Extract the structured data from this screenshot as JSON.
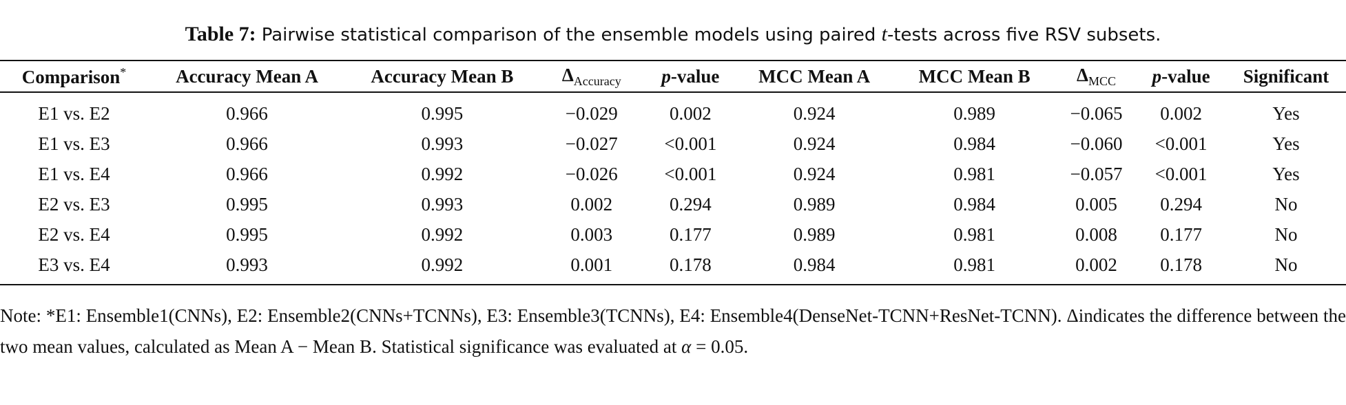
{
  "caption": {
    "label": "Table 7:",
    "text_before": "Pairwise statistical comparison of the ensemble models using paired ",
    "text_italic": "t",
    "text_after": "-tests across five RSV subsets."
  },
  "table": {
    "header": [
      {
        "text": "Comparison",
        "sup": "*"
      },
      {
        "text": "Accuracy Mean A"
      },
      {
        "text": "Accuracy Mean B"
      },
      {
        "text": "Δ",
        "sub": "Accuracy"
      },
      {
        "italic": "p",
        "text": "-value"
      },
      {
        "text": "MCC Mean A"
      },
      {
        "text": "MCC Mean B"
      },
      {
        "text": "Δ",
        "sub": "MCC"
      },
      {
        "italic": "p",
        "text": "-value"
      },
      {
        "text": "Significant"
      }
    ],
    "rows": [
      [
        "E1 vs. E2",
        "0.966",
        "0.995",
        "−0.029",
        "0.002",
        "0.924",
        "0.989",
        "−0.065",
        "0.002",
        "Yes"
      ],
      [
        "E1 vs. E3",
        "0.966",
        "0.993",
        "−0.027",
        "<0.001",
        "0.924",
        "0.984",
        "−0.060",
        "<0.001",
        "Yes"
      ],
      [
        "E1 vs. E4",
        "0.966",
        "0.992",
        "−0.026",
        "<0.001",
        "0.924",
        "0.981",
        "−0.057",
        "<0.001",
        "Yes"
      ],
      [
        "E2 vs. E3",
        "0.995",
        "0.993",
        "0.002",
        "0.294",
        "0.989",
        "0.984",
        "0.005",
        "0.294",
        "No"
      ],
      [
        "E2 vs. E4",
        "0.995",
        "0.992",
        "0.003",
        "0.177",
        "0.989",
        "0.981",
        "0.008",
        "0.177",
        "No"
      ],
      [
        "E3 vs. E4",
        "0.993",
        "0.992",
        "0.001",
        "0.178",
        "0.984",
        "0.981",
        "0.002",
        "0.178",
        "No"
      ]
    ]
  },
  "note": {
    "text_before": "Note: *E1: Ensemble1(CNNs), E2: Ensemble2(CNNs+TCNNs), E3: Ensemble3(TCNNs), E4: Ensemble4(DenseNet-TCNN+ResNet-TCNN). Δindicates the difference between the two mean values, calculated as Mean A − Mean B. Statistical significance was evaluated at ",
    "text_italic": "α",
    "text_after": " = 0.05."
  }
}
